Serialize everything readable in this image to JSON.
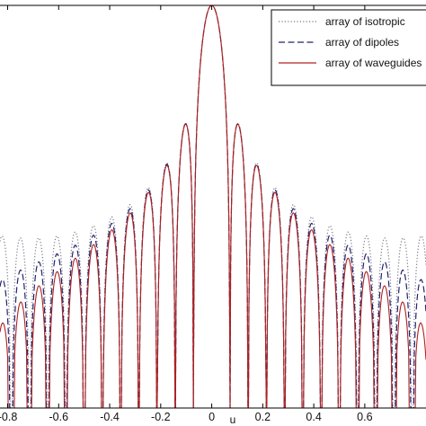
{
  "chart_data": {
    "type": "line",
    "title": "",
    "xlabel": "u",
    "ylabel": "",
    "xlim": [
      -0.83,
      0.84
    ],
    "ylim": [
      -0.45,
      0.0
    ],
    "x_ticks": [
      -0.8,
      -0.6,
      -0.4,
      -0.2,
      0,
      0.2,
      0.4,
      0.6
    ],
    "x_tick_labels": [
      "-0.8",
      "-0.6",
      "-0.4",
      "-0.2",
      "0",
      "0.2",
      "0.4",
      "0.6"
    ],
    "grid": false,
    "legend_position": "top-right",
    "pattern": {
      "elements": 20,
      "spacing_wavelengths": 0.7,
      "floor_db": -40,
      "plot_floor_db": -45,
      "x_step": 0.002
    },
    "series": [
      {
        "name": "array of isotropic",
        "line_style": "dotted",
        "color": "#7a7a88",
        "element_factor": "isotropic"
      },
      {
        "name": "array of dipoles",
        "line_style": "dashed",
        "color": "#22236e",
        "element_factor": "dipole"
      },
      {
        "name": "array of waveguides",
        "line_style": "solid",
        "color": "#b02020",
        "element_factor": "waveguide"
      }
    ]
  }
}
